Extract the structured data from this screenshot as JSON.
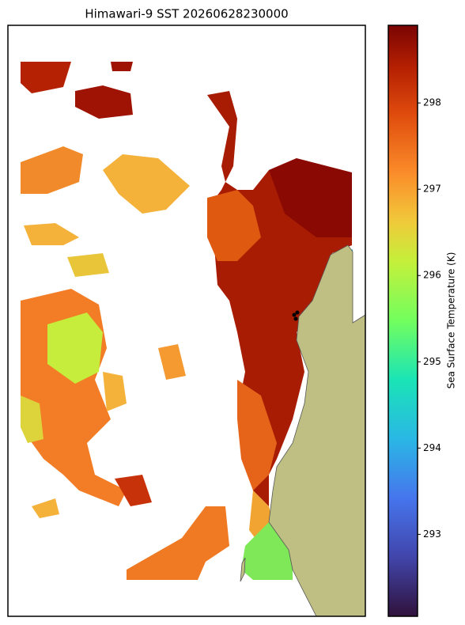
{
  "chart_data": {
    "type": "map",
    "title": "Himawari-9 SST 20260628230000",
    "colorbar": {
      "label": "Sea Surface Temperature (K)",
      "lim": [
        292.05,
        298.9
      ],
      "ticks": [
        293,
        294,
        295,
        296,
        297,
        298
      ]
    }
  }
}
